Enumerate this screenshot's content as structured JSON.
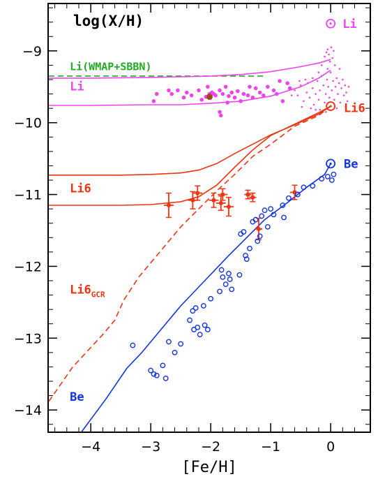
{
  "chart_data": {
    "type": "line",
    "title": "log(X/H)",
    "xlabel": "[Fe/H]",
    "ylabel": "",
    "xlim": [
      -4.7,
      0.65
    ],
    "ylim": [
      -14.3,
      -8.35
    ],
    "xticks": [
      -4,
      -3,
      -2,
      -1,
      0
    ],
    "xtick_labels": [
      "−4",
      "−3",
      "−2",
      "−1",
      "0"
    ],
    "yticks": [
      -14,
      -13,
      -12,
      -11,
      -10,
      -9
    ],
    "ytick_labels": [
      "−14",
      "−13",
      "−12",
      "−11",
      "−10",
      "−9"
    ],
    "grid": false,
    "colors": {
      "li": "#ee44ee",
      "li6": "#ee3311",
      "be": "#1133dd",
      "wmap": "#22aa22",
      "brown": "#a04a1a"
    },
    "annotations": [
      {
        "text": "Li(WMAP+SBBN)",
        "x": -4.35,
        "y": -9.27,
        "color": "wmap",
        "size": 15
      },
      {
        "text": "Li",
        "x": -4.35,
        "y": -9.55,
        "color": "li",
        "size": 17
      },
      {
        "text": "Li6",
        "x": -4.35,
        "y": -10.97,
        "color": "li6",
        "size": 17
      },
      {
        "text": "Li6",
        "x": -4.35,
        "y": -12.38,
        "color": "li6",
        "size": 17,
        "sub": "GCR"
      },
      {
        "text": "Be",
        "x": -4.35,
        "y": -13.87,
        "color": "be",
        "size": 17
      },
      {
        "text": "Li",
        "x": 0.2,
        "y": -8.68,
        "color": "li",
        "size": 17
      },
      {
        "text": "Li6",
        "x": 0.22,
        "y": -9.85,
        "color": "li6",
        "size": 17
      },
      {
        "text": "Be",
        "x": 0.22,
        "y": -10.63,
        "color": "be",
        "size": 17
      }
    ],
    "sun_symbols": [
      {
        "x": 0.0,
        "y": -8.62,
        "color": "li"
      },
      {
        "x": 0.0,
        "y": -9.77,
        "color": "li6"
      },
      {
        "x": 0.0,
        "y": -10.57,
        "color": "be"
      }
    ],
    "series": [
      {
        "kind": "line",
        "color": "wmap",
        "dash": true,
        "points": [
          [
            -4.7,
            -9.35
          ],
          [
            -1.1,
            -9.35
          ]
        ]
      },
      {
        "kind": "line",
        "color": "li",
        "points": [
          [
            -4.7,
            -9.38
          ],
          [
            -4,
            -9.38
          ],
          [
            -3,
            -9.37
          ],
          [
            -2.5,
            -9.36
          ],
          [
            -2,
            -9.35
          ],
          [
            -1.5,
            -9.33
          ],
          [
            -1,
            -9.29
          ],
          [
            -0.5,
            -9.22
          ],
          [
            -0.2,
            -9.17
          ],
          [
            0,
            -9.12
          ]
        ]
      },
      {
        "kind": "line",
        "color": "li",
        "points": [
          [
            -4.7,
            -9.76
          ],
          [
            -4,
            -9.76
          ],
          [
            -3,
            -9.75
          ],
          [
            -2.5,
            -9.75
          ],
          [
            -2,
            -9.73
          ],
          [
            -1.5,
            -9.7
          ],
          [
            -1,
            -9.63
          ],
          [
            -0.5,
            -9.5
          ],
          [
            -0.2,
            -9.38
          ],
          [
            0,
            -9.27
          ]
        ]
      },
      {
        "kind": "line",
        "color": "li6",
        "points": [
          [
            -4.7,
            -10.73
          ],
          [
            -4,
            -10.73
          ],
          [
            -3.5,
            -10.73
          ],
          [
            -3,
            -10.72
          ],
          [
            -2.5,
            -10.7
          ],
          [
            -2.2,
            -10.66
          ],
          [
            -1.9,
            -10.57
          ],
          [
            -1.6,
            -10.43
          ],
          [
            -1.3,
            -10.3
          ],
          [
            -1,
            -10.17
          ],
          [
            -0.6,
            -10.03
          ],
          [
            -0.2,
            -9.88
          ],
          [
            0,
            -9.77
          ]
        ]
      },
      {
        "kind": "line",
        "color": "li6",
        "points": [
          [
            -4.7,
            -11.15
          ],
          [
            -4,
            -11.15
          ],
          [
            -3.5,
            -11.15
          ],
          [
            -3,
            -11.14
          ],
          [
            -2.5,
            -11.1
          ],
          [
            -2.2,
            -11.03
          ],
          [
            -1.9,
            -10.87
          ],
          [
            -1.6,
            -10.62
          ],
          [
            -1.3,
            -10.38
          ],
          [
            -1,
            -10.18
          ],
          [
            -0.6,
            -10.02
          ],
          [
            -0.2,
            -9.86
          ],
          [
            0,
            -9.77
          ]
        ]
      },
      {
        "kind": "line",
        "color": "li6",
        "dash": true,
        "points": [
          [
            -4.7,
            -13.88
          ],
          [
            -4.3,
            -13.4
          ],
          [
            -3.8,
            -12.95
          ],
          [
            -3.6,
            -12.75
          ],
          [
            -3.45,
            -12.47
          ],
          [
            -3.2,
            -12.15
          ],
          [
            -2.8,
            -11.75
          ],
          [
            -2.5,
            -11.45
          ],
          [
            -2.2,
            -11.2
          ],
          [
            -1.9,
            -10.95
          ],
          [
            -1.6,
            -10.72
          ],
          [
            -1.3,
            -10.47
          ],
          [
            -1,
            -10.3
          ],
          [
            -0.6,
            -10.05
          ],
          [
            -0.2,
            -9.9
          ],
          [
            0,
            -9.77
          ]
        ]
      },
      {
        "kind": "line",
        "color": "be",
        "points": [
          [
            -4.15,
            -14.3
          ],
          [
            -3.75,
            -13.85
          ],
          [
            -3.4,
            -13.42
          ],
          [
            -3.15,
            -13.2
          ],
          [
            -2.8,
            -12.85
          ],
          [
            -2.5,
            -12.55
          ],
          [
            -2.1,
            -12.2
          ],
          [
            -1.7,
            -11.85
          ],
          [
            -1.4,
            -11.6
          ],
          [
            -1.1,
            -11.35
          ],
          [
            -0.7,
            -11.1
          ],
          [
            -0.4,
            -10.9
          ],
          [
            -0.1,
            -10.72
          ],
          [
            0,
            -10.57
          ]
        ]
      }
    ],
    "li_big_points": [
      [
        -2.9,
        -9.6
      ],
      [
        -2.65,
        -9.6
      ],
      [
        -2.55,
        -9.55
      ],
      [
        -2.45,
        -9.65
      ],
      [
        -2.4,
        -9.58
      ],
      [
        -2.32,
        -9.62
      ],
      [
        -2.2,
        -9.55
      ],
      [
        -2.15,
        -9.68
      ],
      [
        -2.08,
        -9.64
      ],
      [
        -2.02,
        -9.6
      ],
      [
        -1.98,
        -9.58
      ],
      [
        -1.95,
        -9.6
      ],
      [
        -1.92,
        -9.62
      ],
      [
        -1.85,
        -9.55
      ],
      [
        -1.8,
        -9.6
      ],
      [
        -1.75,
        -9.5
      ],
      [
        -1.7,
        -9.63
      ],
      [
        -1.65,
        -9.58
      ],
      [
        -1.6,
        -9.65
      ],
      [
        -1.55,
        -9.56
      ],
      [
        -1.5,
        -9.7
      ],
      [
        -1.45,
        -9.6
      ],
      [
        -1.38,
        -9.62
      ],
      [
        -1.3,
        -9.65
      ],
      [
        -1.25,
        -9.52
      ],
      [
        -1.18,
        -9.58
      ],
      [
        -1.12,
        -9.62
      ],
      [
        -1.05,
        -9.5
      ],
      [
        -0.95,
        -9.55
      ],
      [
        -0.9,
        -9.6
      ],
      [
        -0.85,
        -9.42
      ],
      [
        -0.8,
        -9.7
      ],
      [
        -0.72,
        -9.45
      ],
      [
        -0.68,
        -9.52
      ],
      [
        -2.7,
        -9.55
      ],
      [
        -2.05,
        -9.5
      ],
      [
        -1.72,
        -9.72
      ],
      [
        -1.35,
        -9.5
      ],
      [
        -1.85,
        -9.85
      ],
      [
        -1.83,
        -9.9
      ],
      [
        -2.95,
        -9.7
      ]
    ],
    "li_small_points": [
      [
        -0.6,
        -9.55
      ],
      [
        -0.55,
        -9.62
      ],
      [
        -0.5,
        -9.48
      ],
      [
        -0.45,
        -9.7
      ],
      [
        -0.4,
        -9.58
      ],
      [
        -0.38,
        -9.45
      ],
      [
        -0.35,
        -9.65
      ],
      [
        -0.3,
        -9.52
      ],
      [
        -0.28,
        -9.75
      ],
      [
        -0.25,
        -9.6
      ],
      [
        -0.22,
        -9.42
      ],
      [
        -0.2,
        -9.68
      ],
      [
        -0.18,
        -9.55
      ],
      [
        -0.15,
        -9.35
      ],
      [
        -0.12,
        -9.48
      ],
      [
        -0.1,
        -9.72
      ],
      [
        -0.08,
        -9.6
      ],
      [
        -0.06,
        -9.4
      ],
      [
        -0.05,
        -9.25
      ],
      [
        -0.04,
        -9.5
      ],
      [
        -0.02,
        -9.65
      ],
      [
        0.0,
        -9.3
      ],
      [
        0.02,
        -9.55
      ],
      [
        0.04,
        -9.42
      ],
      [
        0.06,
        -9.68
      ],
      [
        0.08,
        -9.5
      ],
      [
        0.1,
        -9.38
      ],
      [
        0.12,
        -9.6
      ],
      [
        0.14,
        -9.45
      ],
      [
        0.16,
        -9.72
      ],
      [
        0.18,
        -9.52
      ],
      [
        0.2,
        -9.4
      ],
      [
        0.22,
        -9.62
      ],
      [
        0.24,
        -9.48
      ],
      [
        0.26,
        -9.58
      ],
      [
        0.28,
        -9.7
      ],
      [
        0.3,
        -9.5
      ],
      [
        -0.1,
        -9.08
      ],
      [
        -0.07,
        -9.02
      ],
      [
        -0.05,
        -8.98
      ],
      [
        -0.03,
        -9.05
      ],
      [
        -0.01,
        -9.15
      ],
      [
        0.01,
        -8.95
      ],
      [
        0.03,
        -9.1
      ],
      [
        0.05,
        -9.0
      ],
      [
        0.07,
        -9.2
      ],
      [
        -0.15,
        -9.2
      ],
      [
        -0.2,
        -9.3
      ],
      [
        -0.3,
        -9.38
      ],
      [
        -0.42,
        -9.4
      ],
      [
        -0.52,
        -9.42
      ],
      [
        -0.33,
        -9.8
      ],
      [
        -0.18,
        -9.82
      ],
      [
        0.1,
        -9.8
      ],
      [
        0.25,
        -9.78
      ],
      [
        -0.48,
        -9.78
      ],
      [
        -0.65,
        -9.62
      ],
      [
        -0.08,
        -9.85
      ],
      [
        0.15,
        -9.25
      ],
      [
        -0.25,
        -9.82
      ]
    ],
    "li_brown_points": [
      [
        -2.02,
        -9.64
      ]
    ],
    "li6_points": [
      {
        "x": -2.7,
        "y": -11.15,
        "xerr": 0.08,
        "yerr": 0.17
      },
      {
        "x": -2.3,
        "y": -11.08,
        "xerr": 0.08,
        "yerr": 0.12
      },
      {
        "x": -2.22,
        "y": -10.98,
        "xerr": 0.08,
        "yerr": 0.1
      },
      {
        "x": -1.95,
        "y": -11.08,
        "xerr": 0.08,
        "yerr": 0.1
      },
      {
        "x": -1.83,
        "y": -11.12,
        "xerr": 0.08,
        "yerr": 0.1
      },
      {
        "x": -1.8,
        "y": -11.0,
        "xerr": 0.08,
        "yerr": 0.08
      },
      {
        "x": -1.7,
        "y": -11.17,
        "xerr": 0.08,
        "yerr": 0.13
      },
      {
        "x": -1.38,
        "y": -11.0,
        "xerr": 0.06,
        "yerr": 0.06
      },
      {
        "x": -1.3,
        "y": -11.04,
        "xerr": 0.06,
        "yerr": 0.06
      },
      {
        "x": -1.2,
        "y": -11.48,
        "xerr": 0.06,
        "yerr": 0.15
      },
      {
        "x": -0.6,
        "y": -10.97,
        "xerr": 0.08,
        "yerr": 0.1
      }
    ],
    "be_points": [
      [
        -3.3,
        -13.1
      ],
      [
        -3.0,
        -13.45
      ],
      [
        -2.95,
        -13.5
      ],
      [
        -2.9,
        -13.52
      ],
      [
        -2.8,
        -13.38
      ],
      [
        -2.75,
        -13.56
      ],
      [
        -2.7,
        -13.05
      ],
      [
        -2.6,
        -13.2
      ],
      [
        -2.5,
        -13.08
      ],
      [
        -2.35,
        -12.75
      ],
      [
        -2.3,
        -12.62
      ],
      [
        -2.28,
        -12.88
      ],
      [
        -2.25,
        -12.58
      ],
      [
        -2.22,
        -12.85
      ],
      [
        -2.18,
        -12.95
      ],
      [
        -2.12,
        -12.55
      ],
      [
        -2.1,
        -12.82
      ],
      [
        -2.05,
        -12.88
      ],
      [
        -2.0,
        -12.45
      ],
      [
        -1.85,
        -12.35
      ],
      [
        -1.82,
        -12.05
      ],
      [
        -1.8,
        -12.15
      ],
      [
        -1.75,
        -12.25
      ],
      [
        -1.7,
        -12.1
      ],
      [
        -1.68,
        -12.18
      ],
      [
        -1.65,
        -12.32
      ],
      [
        -1.52,
        -12.12
      ],
      [
        -1.5,
        -11.55
      ],
      [
        -1.45,
        -11.52
      ],
      [
        -1.42,
        -11.85
      ],
      [
        -1.4,
        -11.9
      ],
      [
        -1.35,
        -11.75
      ],
      [
        -1.3,
        -11.38
      ],
      [
        -1.25,
        -11.35
      ],
      [
        -1.22,
        -11.65
      ],
      [
        -1.18,
        -11.58
      ],
      [
        -1.15,
        -11.3
      ],
      [
        -1.1,
        -11.22
      ],
      [
        -1.05,
        -11.45
      ],
      [
        -1.0,
        -11.2
      ],
      [
        -0.95,
        -11.28
      ],
      [
        -0.8,
        -11.15
      ],
      [
        -0.78,
        -11.32
      ],
      [
        -0.7,
        -11.05
      ],
      [
        -0.55,
        -11.0
      ],
      [
        -0.45,
        -10.9
      ],
      [
        -0.3,
        -10.88
      ],
      [
        -0.15,
        -10.78
      ],
      [
        -0.05,
        -10.75
      ],
      [
        0.02,
        -10.8
      ],
      [
        0.05,
        -10.72
      ]
    ]
  }
}
